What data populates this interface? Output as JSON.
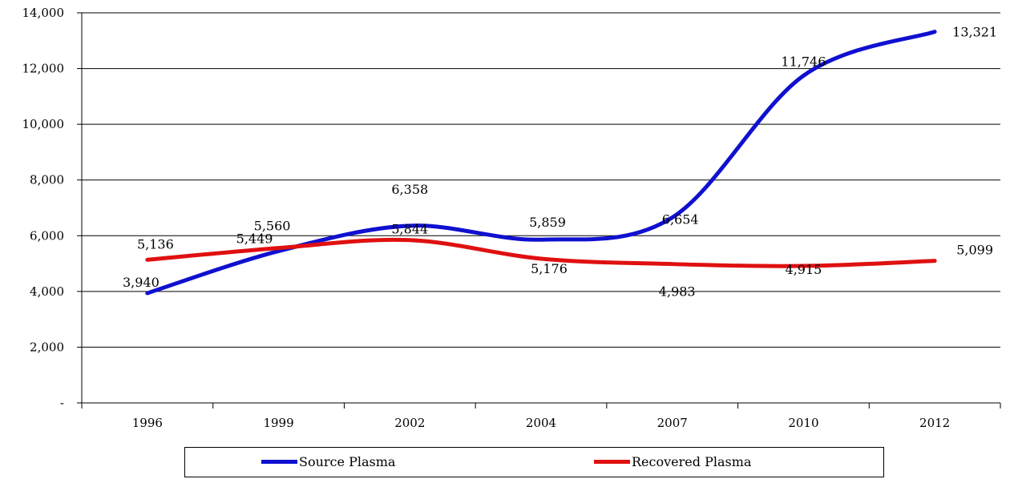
{
  "chart_data": {
    "type": "line",
    "title": "",
    "xlabel": "",
    "ylabel": "",
    "categories": [
      "1996",
      "1999",
      "2002",
      "2004",
      "2007",
      "2010",
      "2012"
    ],
    "ylim": [
      0,
      14000
    ],
    "y_ticks": [
      {
        "value": 0,
        "label": "-"
      },
      {
        "value": 2000,
        "label": "2,000"
      },
      {
        "value": 4000,
        "label": "4,000"
      },
      {
        "value": 6000,
        "label": "6,000"
      },
      {
        "value": 8000,
        "label": "8,000"
      },
      {
        "value": 10000,
        "label": "10,000"
      },
      {
        "value": 12000,
        "label": "12,000"
      },
      {
        "value": 14000,
        "label": "14,000"
      }
    ],
    "grid": "horizontal",
    "legend_position": "bottom",
    "series": [
      {
        "name": "Source Plasma",
        "color": "#1010d0",
        "x": [
          1996,
          1999,
          2002,
          2004,
          2007,
          2010,
          2012
        ],
        "values": [
          3940,
          5449,
          6358,
          5859,
          6654,
          11746,
          13321
        ],
        "labels": [
          "3,940",
          "5,449",
          "6,358",
          "5,859",
          "6,654",
          "11,746",
          "13,321"
        ]
      },
      {
        "name": "Recovered Plasma",
        "color": "#e01010",
        "x": [
          1996,
          1999,
          2002,
          2004,
          2007,
          2010,
          2012
        ],
        "values": [
          5136,
          5560,
          5844,
          5176,
          4983,
          4915,
          5099
        ],
        "labels": [
          "5,136",
          "5,560",
          "5,844",
          "5,176",
          "4,983",
          "4,915",
          "5,099"
        ]
      }
    ]
  }
}
